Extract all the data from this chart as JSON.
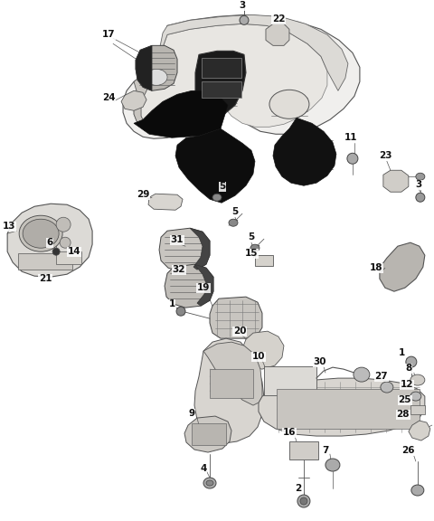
{
  "bg_color": "#ffffff",
  "fig_width": 4.8,
  "fig_height": 5.76,
  "dpi": 100,
  "line_color": "#444444",
  "line_width": 0.7,
  "label_fontsize": 7.0,
  "label_color": "#111111"
}
